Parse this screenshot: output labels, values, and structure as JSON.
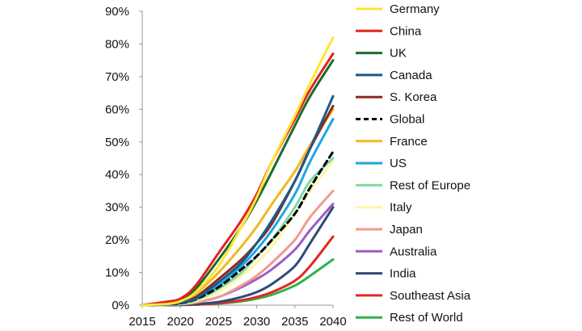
{
  "chart_data": {
    "type": "line",
    "title": "",
    "xlabel": "",
    "ylabel": "",
    "xlim": [
      2015,
      2040
    ],
    "ylim": [
      0,
      90
    ],
    "x_ticks": [
      2015,
      2020,
      2025,
      2030,
      2035,
      2040
    ],
    "y_ticks": [
      0,
      10,
      20,
      30,
      40,
      50,
      60,
      70,
      80,
      90
    ],
    "y_tick_labels": [
      "0%",
      "10%",
      "20%",
      "30%",
      "40%",
      "50%",
      "60%",
      "70%",
      "80%",
      "90%"
    ],
    "grid": false,
    "legend_position": "right",
    "x": [
      2015,
      2018,
      2020,
      2022,
      2025,
      2028,
      2030,
      2032,
      2035,
      2037,
      2040
    ],
    "series": [
      {
        "name": "Germany",
        "color": "#FFE633",
        "dash": false,
        "values": [
          0,
          0.3,
          1.2,
          4,
          12,
          24,
          33,
          44,
          58,
          68,
          82
        ]
      },
      {
        "name": "China",
        "color": "#E3231F",
        "dash": false,
        "values": [
          0,
          1,
          2,
          6,
          16,
          26,
          34,
          44,
          57,
          66,
          77
        ]
      },
      {
        "name": "UK",
        "color": "#1E6B2D",
        "dash": false,
        "values": [
          0,
          0.5,
          1.5,
          5,
          14,
          24,
          32,
          41,
          55,
          64,
          75
        ]
      },
      {
        "name": "Canada",
        "color": "#1A5A8A",
        "dash": false,
        "values": [
          0,
          0.2,
          0.8,
          2,
          7,
          13,
          19,
          26,
          38,
          48,
          64
        ]
      },
      {
        "name": "S. Korea",
        "color": "#8E2A1E",
        "dash": false,
        "values": [
          0,
          0.2,
          0.8,
          2.5,
          8,
          14,
          19,
          25,
          38,
          48,
          61
        ]
      },
      {
        "name": "Global",
        "color": "#000000",
        "dash": true,
        "values": [
          0,
          0.2,
          0.6,
          1.8,
          5.5,
          11,
          15,
          20,
          28,
          36,
          47
        ]
      },
      {
        "name": "France",
        "color": "#F2B81F",
        "dash": false,
        "values": [
          0,
          0.3,
          1,
          3.5,
          10,
          18,
          24,
          31,
          41,
          49,
          60
        ]
      },
      {
        "name": "US",
        "color": "#1EA6E0",
        "dash": false,
        "values": [
          0,
          0.2,
          0.6,
          2,
          6,
          12,
          17,
          23,
          34,
          44,
          57
        ]
      },
      {
        "name": "Rest of Europe",
        "color": "#7FD9A4",
        "dash": false,
        "values": [
          0,
          0.1,
          0.5,
          1.5,
          5,
          10,
          15,
          20,
          30,
          38,
          45
        ]
      },
      {
        "name": "Italy",
        "color": "#FFF5A6",
        "dash": false,
        "values": [
          0,
          0.1,
          0.4,
          1.2,
          4,
          9,
          13,
          18,
          28,
          35,
          44
        ]
      },
      {
        "name": "Japan",
        "color": "#F29A8E",
        "dash": false,
        "values": [
          0,
          0.1,
          0.3,
          0.8,
          2.5,
          6,
          9,
          13,
          20,
          27,
          35
        ]
      },
      {
        "name": "Australia",
        "color": "#9D5CC7",
        "dash": false,
        "values": [
          0,
          0.1,
          0.3,
          0.8,
          2.5,
          5.5,
          8,
          11,
          17,
          23,
          31
        ]
      },
      {
        "name": "India",
        "color": "#2E4A7A",
        "dash": false,
        "values": [
          0,
          0,
          0.1,
          0.3,
          1,
          2.5,
          4,
          6.5,
          12,
          19,
          30
        ]
      },
      {
        "name": "Southeast Asia",
        "color": "#E02A1F",
        "dash": false,
        "values": [
          0,
          0,
          0.1,
          0.2,
          0.6,
          1.5,
          2.5,
          4,
          7.5,
          12,
          21
        ]
      },
      {
        "name": "Rest of World",
        "color": "#2DB34A",
        "dash": false,
        "values": [
          0,
          0,
          0.05,
          0.15,
          0.5,
          1.2,
          2,
          3.2,
          6,
          9,
          14
        ]
      }
    ]
  }
}
